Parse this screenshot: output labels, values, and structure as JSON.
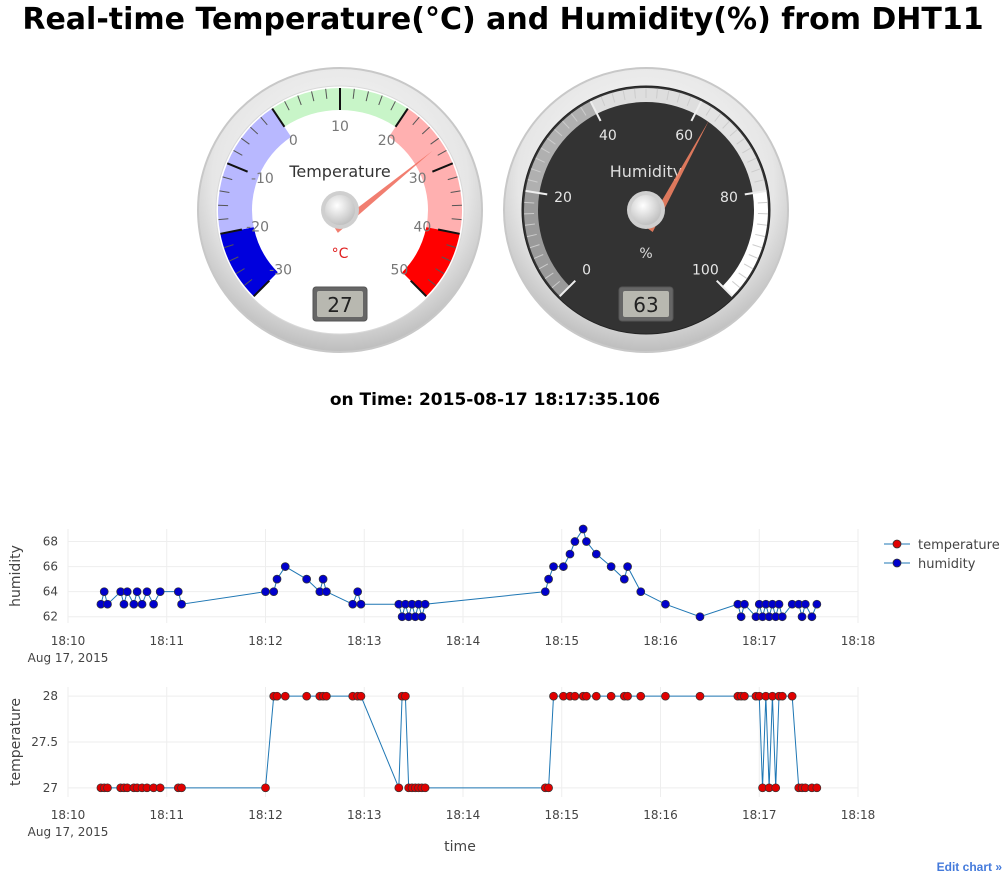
{
  "title": "Real-time Temperature(°C) and Humidity(%) from DHT11",
  "time_prefix": "on Time:",
  "time_value": "2015-08-17 18:17:35.106",
  "edit_link": "Edit chart »",
  "colors": {
    "temperature": "#e00000",
    "humidity": "#0000cc",
    "line": "#1f77b4"
  },
  "gauges": [
    {
      "title": "Temperature",
      "units": "°C",
      "min": -30,
      "max": 50,
      "value": 27,
      "major_ticks": [
        "-30",
        "-20",
        "-10",
        "0",
        "10",
        "20",
        "30",
        "40",
        "50"
      ],
      "display": "27"
    },
    {
      "title": "Humidity",
      "units": "%",
      "min": 0,
      "max": 100,
      "value": 63,
      "major_ticks": [
        "0",
        "20",
        "40",
        "60",
        "80",
        "100"
      ],
      "display": "63"
    }
  ],
  "chart_data": {
    "type": "scatter",
    "x_ticks": [
      "18:10",
      "18:11",
      "18:12",
      "18:13",
      "18:14",
      "18:15",
      "18:16",
      "18:17",
      "18:18"
    ],
    "x_date_label": "Aug 17, 2015",
    "xlabel": "time",
    "legend": [
      "temperature",
      "humidity"
    ],
    "legend_placement": "top-right",
    "x": [
      "18:10:20",
      "18:10:22",
      "18:10:24",
      "18:10:32",
      "18:10:34",
      "18:10:36",
      "18:10:40",
      "18:10:42",
      "18:10:45",
      "18:10:48",
      "18:10:52",
      "18:10:56",
      "18:11:07",
      "18:11:09",
      "18:12:00",
      "18:12:05",
      "18:12:07",
      "18:12:12",
      "18:12:25",
      "18:12:33",
      "18:12:35",
      "18:12:37",
      "18:12:53",
      "18:12:56",
      "18:12:58",
      "18:13:21",
      "18:13:23",
      "18:13:25",
      "18:13:27",
      "18:13:29",
      "18:13:31",
      "18:13:33",
      "18:13:35",
      "18:13:37",
      "18:14:50",
      "18:14:52",
      "18:14:55",
      "18:15:01",
      "18:15:05",
      "18:15:08",
      "18:15:13",
      "18:15:15",
      "18:15:21",
      "18:15:30",
      "18:15:38",
      "18:15:40",
      "18:15:48",
      "18:16:03",
      "18:16:24",
      "18:16:47",
      "18:16:49",
      "18:16:51",
      "18:16:58",
      "18:17:00",
      "18:17:02",
      "18:17:04",
      "18:17:06",
      "18:17:08",
      "18:17:10",
      "18:17:12",
      "18:17:14",
      "18:17:20",
      "18:17:24",
      "18:17:26",
      "18:17:28",
      "18:17:32",
      "18:17:35"
    ],
    "panels": [
      {
        "ylabel": "humidity",
        "y_ticks": [
          "62",
          "64",
          "66",
          "68"
        ],
        "ylim": [
          61.5,
          69
        ],
        "series": [
          {
            "name": "humidity",
            "y": [
              63,
              64,
              63,
              64,
              63,
              64,
              63,
              64,
              63,
              64,
              63,
              64,
              64,
              63,
              64,
              64,
              65,
              66,
              65,
              64,
              65,
              64,
              63,
              64,
              63,
              63,
              62,
              63,
              62,
              63,
              62,
              63,
              62,
              63,
              64,
              65,
              66,
              66,
              67,
              68,
              69,
              68,
              67,
              66,
              65,
              66,
              64,
              63,
              62,
              63,
              62,
              63,
              62,
              63,
              62,
              63,
              62,
              63,
              62,
              63,
              62,
              63,
              63,
              62,
              63,
              62,
              63
            ]
          }
        ]
      },
      {
        "ylabel": "temperature",
        "y_ticks": [
          "27",
          "27.5",
          "28"
        ],
        "ylim": [
          26.9,
          28.1
        ],
        "series": [
          {
            "name": "temperature",
            "y": [
              27,
              27,
              27,
              27,
              27,
              27,
              27,
              27,
              27,
              27,
              27,
              27,
              27,
              27,
              27,
              28,
              28,
              28,
              28,
              28,
              28,
              28,
              28,
              28,
              28,
              27,
              28,
              28,
              27,
              27,
              27,
              27,
              27,
              27,
              27,
              27,
              28,
              28,
              28,
              28,
              28,
              28,
              28,
              28,
              28,
              28,
              28,
              28,
              28,
              28,
              28,
              28,
              28,
              28,
              27,
              28,
              27,
              28,
              27,
              28,
              28,
              28,
              27,
              27,
              27,
              27,
              27
            ]
          }
        ]
      }
    ]
  }
}
